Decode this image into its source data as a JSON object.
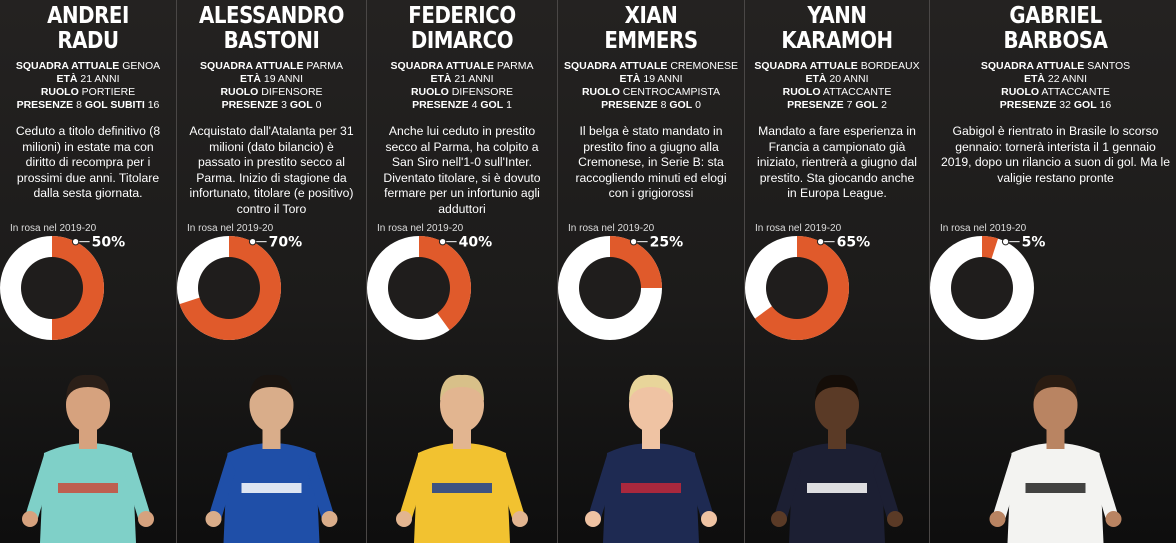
{
  "colors": {
    "accent": "#e05a2b",
    "ring_bg": "#ffffff",
    "center": "#1f1d1c",
    "background": "#1f1d1c"
  },
  "players": [
    {
      "first": "ANDREI",
      "last": "RADU",
      "club_label": "SQUADRA ATTUALE",
      "club": "GENOA",
      "age_label": "ETÀ",
      "age": "21 ANNI",
      "role_label": "RUOLO",
      "role": "PORTIERE",
      "apps_label": "PRESENZE",
      "apps": "8",
      "stat2_label": "GOL SUBITI",
      "stat2": "16",
      "desc": "Ceduto a titolo definitivo (8 milioni) in estate ma con diritto di recompra per i prossimi due anni. Titolare dalla sesta giornata.",
      "rosa_label": "In rosa nel 2019-20",
      "pct": 50,
      "pct_label": "50%",
      "kit": {
        "shirt": "#7fd0c8",
        "accent": "#c94b3b",
        "skin": "#d6a27e",
        "hair": "#2b1f18",
        "shorts": "#6cbab3"
      }
    },
    {
      "first": "ALESSANDRO",
      "last": "BASTONI",
      "club_label": "SQUADRA ATTUALE",
      "club": "PARMA",
      "age_label": "ETÀ",
      "age": "19 ANNI",
      "role_label": "RUOLO",
      "role": "DIFENSORE",
      "apps_label": "PRESENZE",
      "apps": "3",
      "stat2_label": "GOL",
      "stat2": "0",
      "desc": "Acquistato dall'Atalanta per 31 milioni (dato bilancio) è passato in prestito secco al Parma. Inizio di stagione da infortunato, titolare (e positivo) contro il Toro",
      "rosa_label": "In rosa nel 2019-20",
      "pct": 70,
      "pct_label": "70%",
      "kit": {
        "shirt": "#1f4fa8",
        "accent": "#ffffff",
        "skin": "#d9ad8a",
        "hair": "#1a1410",
        "shorts": "#ffffff"
      }
    },
    {
      "first": "FEDERICO",
      "last": "DIMARCO",
      "club_label": "SQUADRA ATTUALE",
      "club": "PARMA",
      "age_label": "ETÀ",
      "age": "21 ANNI",
      "role_label": "RUOLO",
      "role": "DIFENSORE",
      "apps_label": "PRESENZE",
      "apps": "4",
      "stat2_label": "GOL",
      "stat2": "1",
      "desc": "Anche lui ceduto in prestito secco al Parma, ha colpito a San Siro nell'1-0 sull'Inter. Diventato titolare, si è dovuto fermare per un infortunio agli adduttori",
      "rosa_label": "In rosa nel 2019-20",
      "pct": 40,
      "pct_label": "40%",
      "kit": {
        "shirt": "#f2c230",
        "accent": "#1f3f8f",
        "skin": "#e2b590",
        "hair": "#d8c089",
        "shorts": "#1f3f8f"
      }
    },
    {
      "first": "XIAN",
      "last": "EMMERS",
      "club_label": "SQUADRA ATTUALE",
      "club": "CREMONESE",
      "age_label": "ETÀ",
      "age": "19 ANNI",
      "role_label": "RUOLO",
      "role": "CENTROCAMPISTA",
      "apps_label": "PRESENZE",
      "apps": "8",
      "stat2_label": "GOL",
      "stat2": "0",
      "desc": "Il belga è stato mandato in prestito fino a giugno alla Cremonese, in Serie B: sta raccogliendo minuti ed elogi con i grigiorossi",
      "rosa_label": "In rosa nel 2019-20",
      "pct": 25,
      "pct_label": "25%",
      "kit": {
        "shirt": "#1e2a52",
        "accent": "#c2283a",
        "skin": "#efc3a3",
        "hair": "#e8d59a",
        "shorts": "#1e2a52"
      }
    },
    {
      "first": "YANN",
      "last": "KARAMOH",
      "club_label": "SQUADRA ATTUALE",
      "club": "BORDEAUX",
      "age_label": "ETÀ",
      "age": "20 ANNI",
      "role_label": "RUOLO",
      "role": "ATTACCANTE",
      "apps_label": "PRESENZE",
      "apps": "7",
      "stat2_label": "GOL",
      "stat2": "2",
      "desc": "Mandato a fare esperienza in Francia a campionato già iniziato, rientrerà a giugno dal prestito. Sta giocando anche in Europa League.",
      "rosa_label": "In rosa nel 2019-20",
      "pct": 65,
      "pct_label": "65%",
      "kit": {
        "shirt": "#1c1f33",
        "accent": "#ffffff",
        "skin": "#5a3a26",
        "hair": "#140d08",
        "shorts": "#1c1f33"
      }
    },
    {
      "first": "GABRIEL",
      "last": "BARBOSA",
      "club_label": "SQUADRA ATTUALE",
      "club": "SANTOS",
      "age_label": "ETÀ",
      "age": "22 ANNI",
      "role_label": "RUOLO",
      "role": "ATTACCANTE",
      "apps_label": "PRESENZE",
      "apps": "32",
      "stat2_label": "GOL",
      "stat2": "16",
      "desc": "Gabigol è rientrato in Brasile lo scorso gennaio: tornerà interista il 1 gennaio 2019, dopo un rilancio a suon di gol. Ma le valigie restano pronte",
      "rosa_label": "In rosa nel 2019-20",
      "pct": 5,
      "pct_label": "5%",
      "kit": {
        "shirt": "#f3f3f1",
        "accent": "#222222",
        "skin": "#b98462",
        "hair": "#2a1c12",
        "shorts": "#f3f3f1"
      }
    }
  ]
}
